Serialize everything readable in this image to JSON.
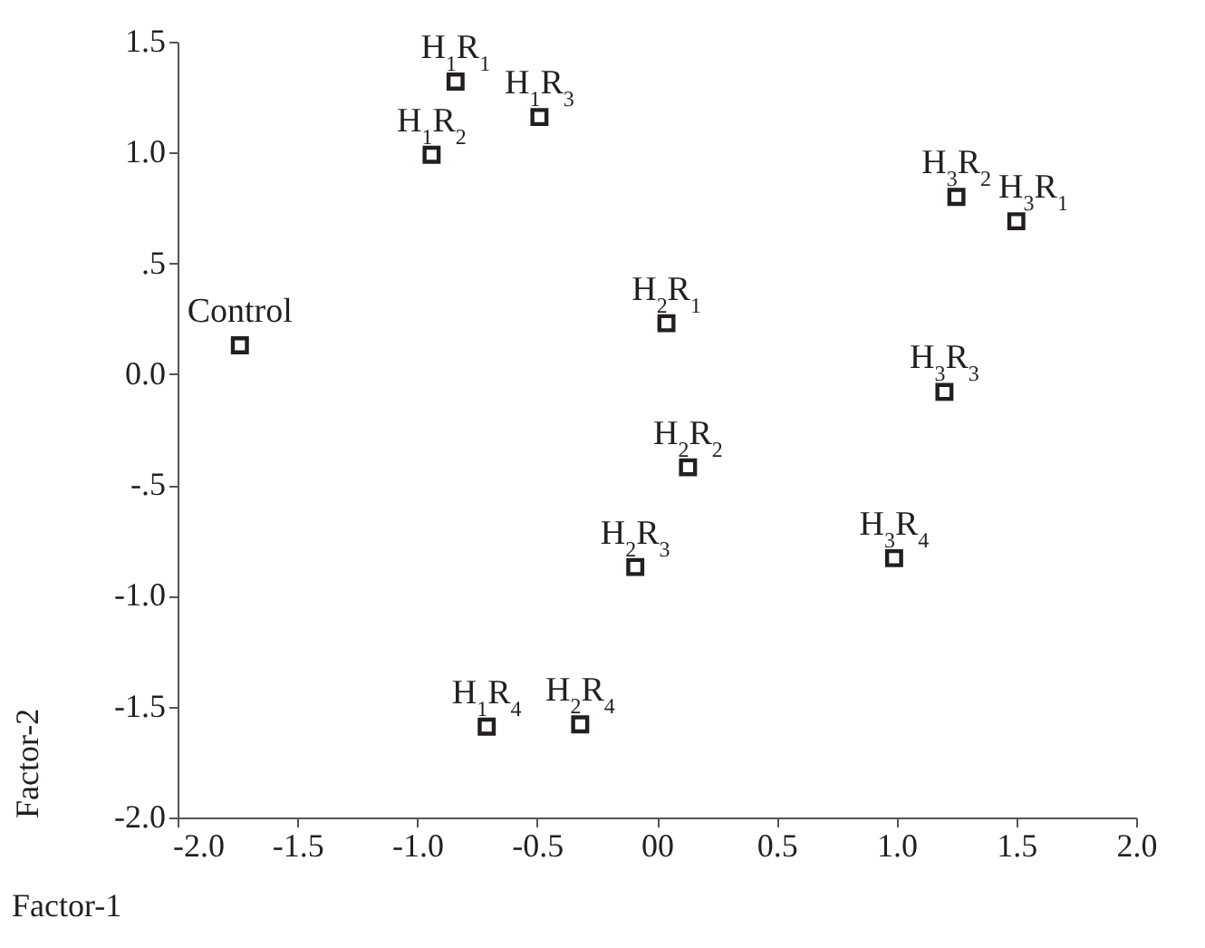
{
  "chart_data": {
    "type": "scatter",
    "xlabel": "Factor-1",
    "ylabel": "Factor-2",
    "x": [
      -1.74,
      -0.84,
      -0.94,
      -0.49,
      -0.71,
      0.04,
      0.13,
      -0.09,
      -0.32,
      1.5,
      1.25,
      1.2,
      0.99
    ],
    "series": [
      {
        "color": "#231f20",
        "values": [
          0.13,
          1.32,
          0.99,
          1.16,
          -1.59,
          0.23,
          -0.42,
          -0.87,
          -1.58,
          0.69,
          0.8,
          -0.08,
          -0.83
        ]
      }
    ],
    "annotations": [
      {
        "text": "Control",
        "x": -1.74,
        "y": 0.13
      },
      {
        "text": "H$_{1}$R$_{1}$",
        "x": -0.84,
        "y": 1.32
      },
      {
        "text": "H$_{1}$R$_{2}$",
        "x": -0.94,
        "y": 0.99
      },
      {
        "text": "H$_{1}$R$_{3}$",
        "x": -0.49,
        "y": 1.16
      },
      {
        "text": "H$_{1}$R$_{4}$",
        "x": -0.71,
        "y": -1.59
      },
      {
        "text": "H$_{2}$R$_{1}$",
        "x": 0.04,
        "y": 0.23
      },
      {
        "text": "H$_{2}$R$_{2}$",
        "x": 0.13,
        "y": -0.42
      },
      {
        "text": "H$_{2}$R$_{3}$",
        "x": -0.09,
        "y": -0.87
      },
      {
        "text": "H$_{2}$R$_{4}$",
        "x": -0.32,
        "y": -1.58
      },
      {
        "text": "H$_{3}$R$_{1}$",
        "x": 1.5,
        "y": 0.69
      },
      {
        "text": "H$_{3}$R$_{2}$",
        "x": 1.25,
        "y": 0.8
      },
      {
        "text": "H$_{3}$R$_{3}$",
        "x": 1.2,
        "y": -0.08
      },
      {
        "text": "H$_{3}$R$_{4}$",
        "x": 0.99,
        "y": -0.83
      }
    ],
    "xlim": [
      -2,
      2
    ],
    "xticks": [
      {
        "value": -2,
        "label": "-2.0"
      },
      {
        "value": -1.5,
        "label": "-1.5"
      },
      {
        "value": -1,
        "label": "-1.0"
      },
      {
        "value": -0.5,
        "label": "-0.5"
      },
      {
        "value": 0,
        "label": "00"
      },
      {
        "value": 0.5,
        "label": "0.5"
      },
      {
        "value": 1,
        "label": "1.0"
      },
      {
        "value": 1.5,
        "label": "1.5"
      },
      {
        "value": 2,
        "label": "2.0"
      }
    ],
    "ylim": [
      -2,
      1.5
    ],
    "yticks": [
      {
        "value": -2,
        "label": "-2.0"
      },
      {
        "value": -1.5,
        "label": "-1.5"
      },
      {
        "value": -1,
        "label": "-1.0"
      },
      {
        "value": -0.5,
        "label": "-.5"
      },
      {
        "value": 0,
        "label": "0.0"
      },
      {
        "value": 0.5,
        "label": ".5"
      },
      {
        "value": 1,
        "label": "1.0"
      },
      {
        "value": 1.5,
        "label": "1.5"
      }
    ],
    "marker": "square",
    "grid": false
  }
}
